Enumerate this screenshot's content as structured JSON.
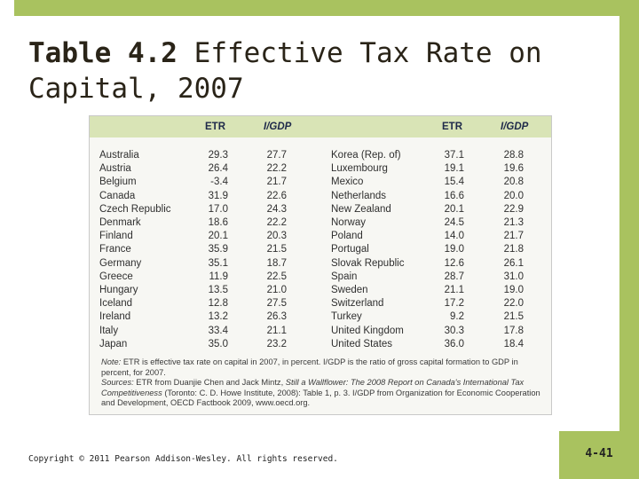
{
  "slide": {
    "title_strong": "Table 4.2",
    "title_rest": "Effective Tax Rate on Capital, 2007",
    "copyright": "Copyright © 2011 Pearson Addison-Wesley. All rights reserved.",
    "page_number": "4-41"
  },
  "table": {
    "headers": {
      "etr": "ETR",
      "igdp": "I/GDP"
    },
    "left_rows": [
      {
        "country": "Australia",
        "etr": "29.3",
        "igdp": "27.7"
      },
      {
        "country": "Austria",
        "etr": "26.4",
        "igdp": "22.2"
      },
      {
        "country": "Belgium",
        "etr": "-3.4",
        "igdp": "21.7"
      },
      {
        "country": "Canada",
        "etr": "31.9",
        "igdp": "22.6"
      },
      {
        "country": "Czech Republic",
        "etr": "17.0",
        "igdp": "24.3"
      },
      {
        "country": "Denmark",
        "etr": "18.6",
        "igdp": "22.2"
      },
      {
        "country": "Finland",
        "etr": "20.1",
        "igdp": "20.3"
      },
      {
        "country": "France",
        "etr": "35.9",
        "igdp": "21.5"
      },
      {
        "country": "Germany",
        "etr": "35.1",
        "igdp": "18.7"
      },
      {
        "country": "Greece",
        "etr": "11.9",
        "igdp": "22.5"
      },
      {
        "country": "Hungary",
        "etr": "13.5",
        "igdp": "21.0"
      },
      {
        "country": "Iceland",
        "etr": "12.8",
        "igdp": "27.5"
      },
      {
        "country": "Ireland",
        "etr": "13.2",
        "igdp": "26.3"
      },
      {
        "country": "Italy",
        "etr": "33.4",
        "igdp": "21.1"
      },
      {
        "country": "Japan",
        "etr": "35.0",
        "igdp": "23.2"
      }
    ],
    "right_rows": [
      {
        "country": "Korea (Rep. of)",
        "etr": "37.1",
        "igdp": "28.8"
      },
      {
        "country": "Luxembourg",
        "etr": "19.1",
        "igdp": "19.6"
      },
      {
        "country": "Mexico",
        "etr": "15.4",
        "igdp": "20.8"
      },
      {
        "country": "Netherlands",
        "etr": "16.6",
        "igdp": "20.0"
      },
      {
        "country": "New Zealand",
        "etr": "20.1",
        "igdp": "22.9"
      },
      {
        "country": "Norway",
        "etr": "24.5",
        "igdp": "21.3"
      },
      {
        "country": "Poland",
        "etr": "14.0",
        "igdp": "21.7"
      },
      {
        "country": "Portugal",
        "etr": "19.0",
        "igdp": "21.8"
      },
      {
        "country": "Slovak Republic",
        "etr": "12.6",
        "igdp": "26.1"
      },
      {
        "country": "Spain",
        "etr": "28.7",
        "igdp": "31.0"
      },
      {
        "country": "Sweden",
        "etr": "21.1",
        "igdp": "19.0"
      },
      {
        "country": "Switzerland",
        "etr": "17.2",
        "igdp": "22.0"
      },
      {
        "country": "Turkey",
        "etr": "9.2",
        "igdp": "21.5"
      },
      {
        "country": "United Kingdom",
        "etr": "30.3",
        "igdp": "17.8"
      },
      {
        "country": "United States",
        "etr": "36.0",
        "igdp": "18.4"
      }
    ],
    "note_label": "Note:",
    "note_text": "ETR is effective tax rate on capital in 2007, in percent. I/GDP is the ratio of gross capital formation to GDP in percent, for 2007.",
    "sources_label": "Sources:",
    "sources_text_1": "ETR from Duanjie Chen and Jack Mintz,",
    "sources_book": "Still a Wallflower: The 2008 Report on Canada's International Tax Competitiveness",
    "sources_text_2": "(Toronto: C. D. Howe Institute, 2008): Table 1, p. 3. I/GDP from Organization for Economic Cooperation and Development, OECD Factbook 2009, www.oecd.org."
  }
}
